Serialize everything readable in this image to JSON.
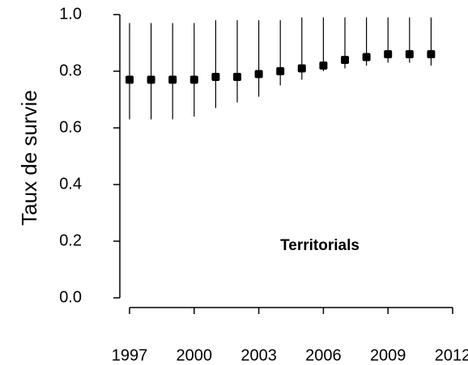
{
  "chart_data": {
    "type": "errorbar",
    "ylabel": "Taux de survie",
    "annotation": "Territorials",
    "x": [
      1997,
      1998,
      1999,
      2000,
      2001,
      2002,
      2003,
      2004,
      2005,
      2006,
      2007,
      2008,
      2009,
      2010,
      2011
    ],
    "series": [
      {
        "color": "#000000",
        "values": [
          0.77,
          0.77,
          0.77,
          0.77,
          0.78,
          0.78,
          0.79,
          0.8,
          0.81,
          0.82,
          0.84,
          0.85,
          0.86,
          0.86,
          0.86
        ],
        "lower": [
          0.63,
          0.63,
          0.63,
          0.64,
          0.67,
          0.69,
          0.71,
          0.75,
          0.77,
          0.8,
          0.81,
          0.82,
          0.83,
          0.83,
          0.82
        ],
        "upper": [
          0.97,
          0.97,
          0.97,
          0.97,
          0.98,
          0.98,
          0.98,
          0.98,
          0.99,
          0.99,
          0.99,
          0.99,
          0.99,
          0.99,
          0.99
        ]
      }
    ],
    "xlim": [
      1997,
      2012
    ],
    "xticks": [
      1997,
      2000,
      2003,
      2006,
      2009,
      2012
    ],
    "ylim": [
      0,
      1
    ],
    "yticks": [
      {
        "value": 0,
        "label": "0.0"
      },
      0.2,
      0.4,
      0.6,
      0.8,
      {
        "value": 1,
        "label": "1.0"
      }
    ]
  }
}
